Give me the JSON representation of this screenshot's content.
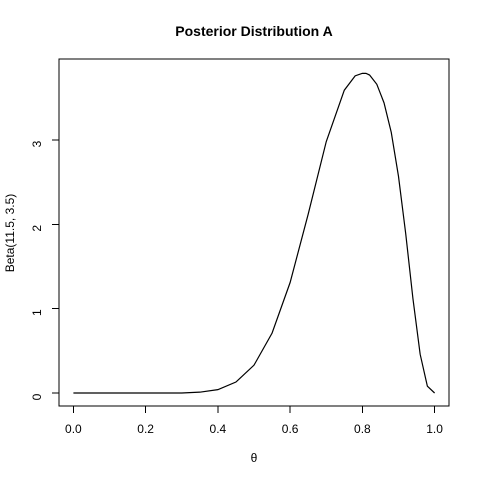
{
  "chart_data": {
    "type": "line",
    "title": "Posterior Distribution A",
    "xlabel": "θ",
    "ylabel": "Beta(11.5, 3.5)",
    "xlim": [
      0,
      1
    ],
    "ylim": [
      0,
      3.8
    ],
    "grid": false,
    "legend": "none",
    "x_ticks": [
      0,
      0.2,
      0.4,
      0.6,
      0.8,
      1
    ],
    "x_tick_labels": [
      "0.0",
      "0.2",
      "0.4",
      "0.6",
      "0.8",
      "1.0"
    ],
    "y_ticks": [
      0,
      1,
      2,
      3
    ],
    "y_tick_labels": [
      "0",
      "1",
      "2",
      "3"
    ],
    "series": [
      {
        "color": "#000000",
        "x": [
          0.0,
          0.05,
          0.1,
          0.15,
          0.2,
          0.25,
          0.3,
          0.35,
          0.4,
          0.45,
          0.5,
          0.55,
          0.6,
          0.65,
          0.7,
          0.75,
          0.78,
          0.8,
          0.81,
          0.82,
          0.84,
          0.86,
          0.88,
          0.9,
          0.92,
          0.94,
          0.96,
          0.98,
          1.0
        ],
        "y": [
          0.0,
          0.0,
          0.0,
          0.0,
          0.0,
          0.0,
          0.0,
          0.01,
          0.04,
          0.13,
          0.33,
          0.71,
          1.31,
          2.12,
          2.98,
          3.59,
          3.76,
          3.79,
          3.79,
          3.77,
          3.66,
          3.44,
          3.09,
          2.57,
          1.89,
          1.12,
          0.46,
          0.08,
          0.0
        ]
      }
    ]
  }
}
